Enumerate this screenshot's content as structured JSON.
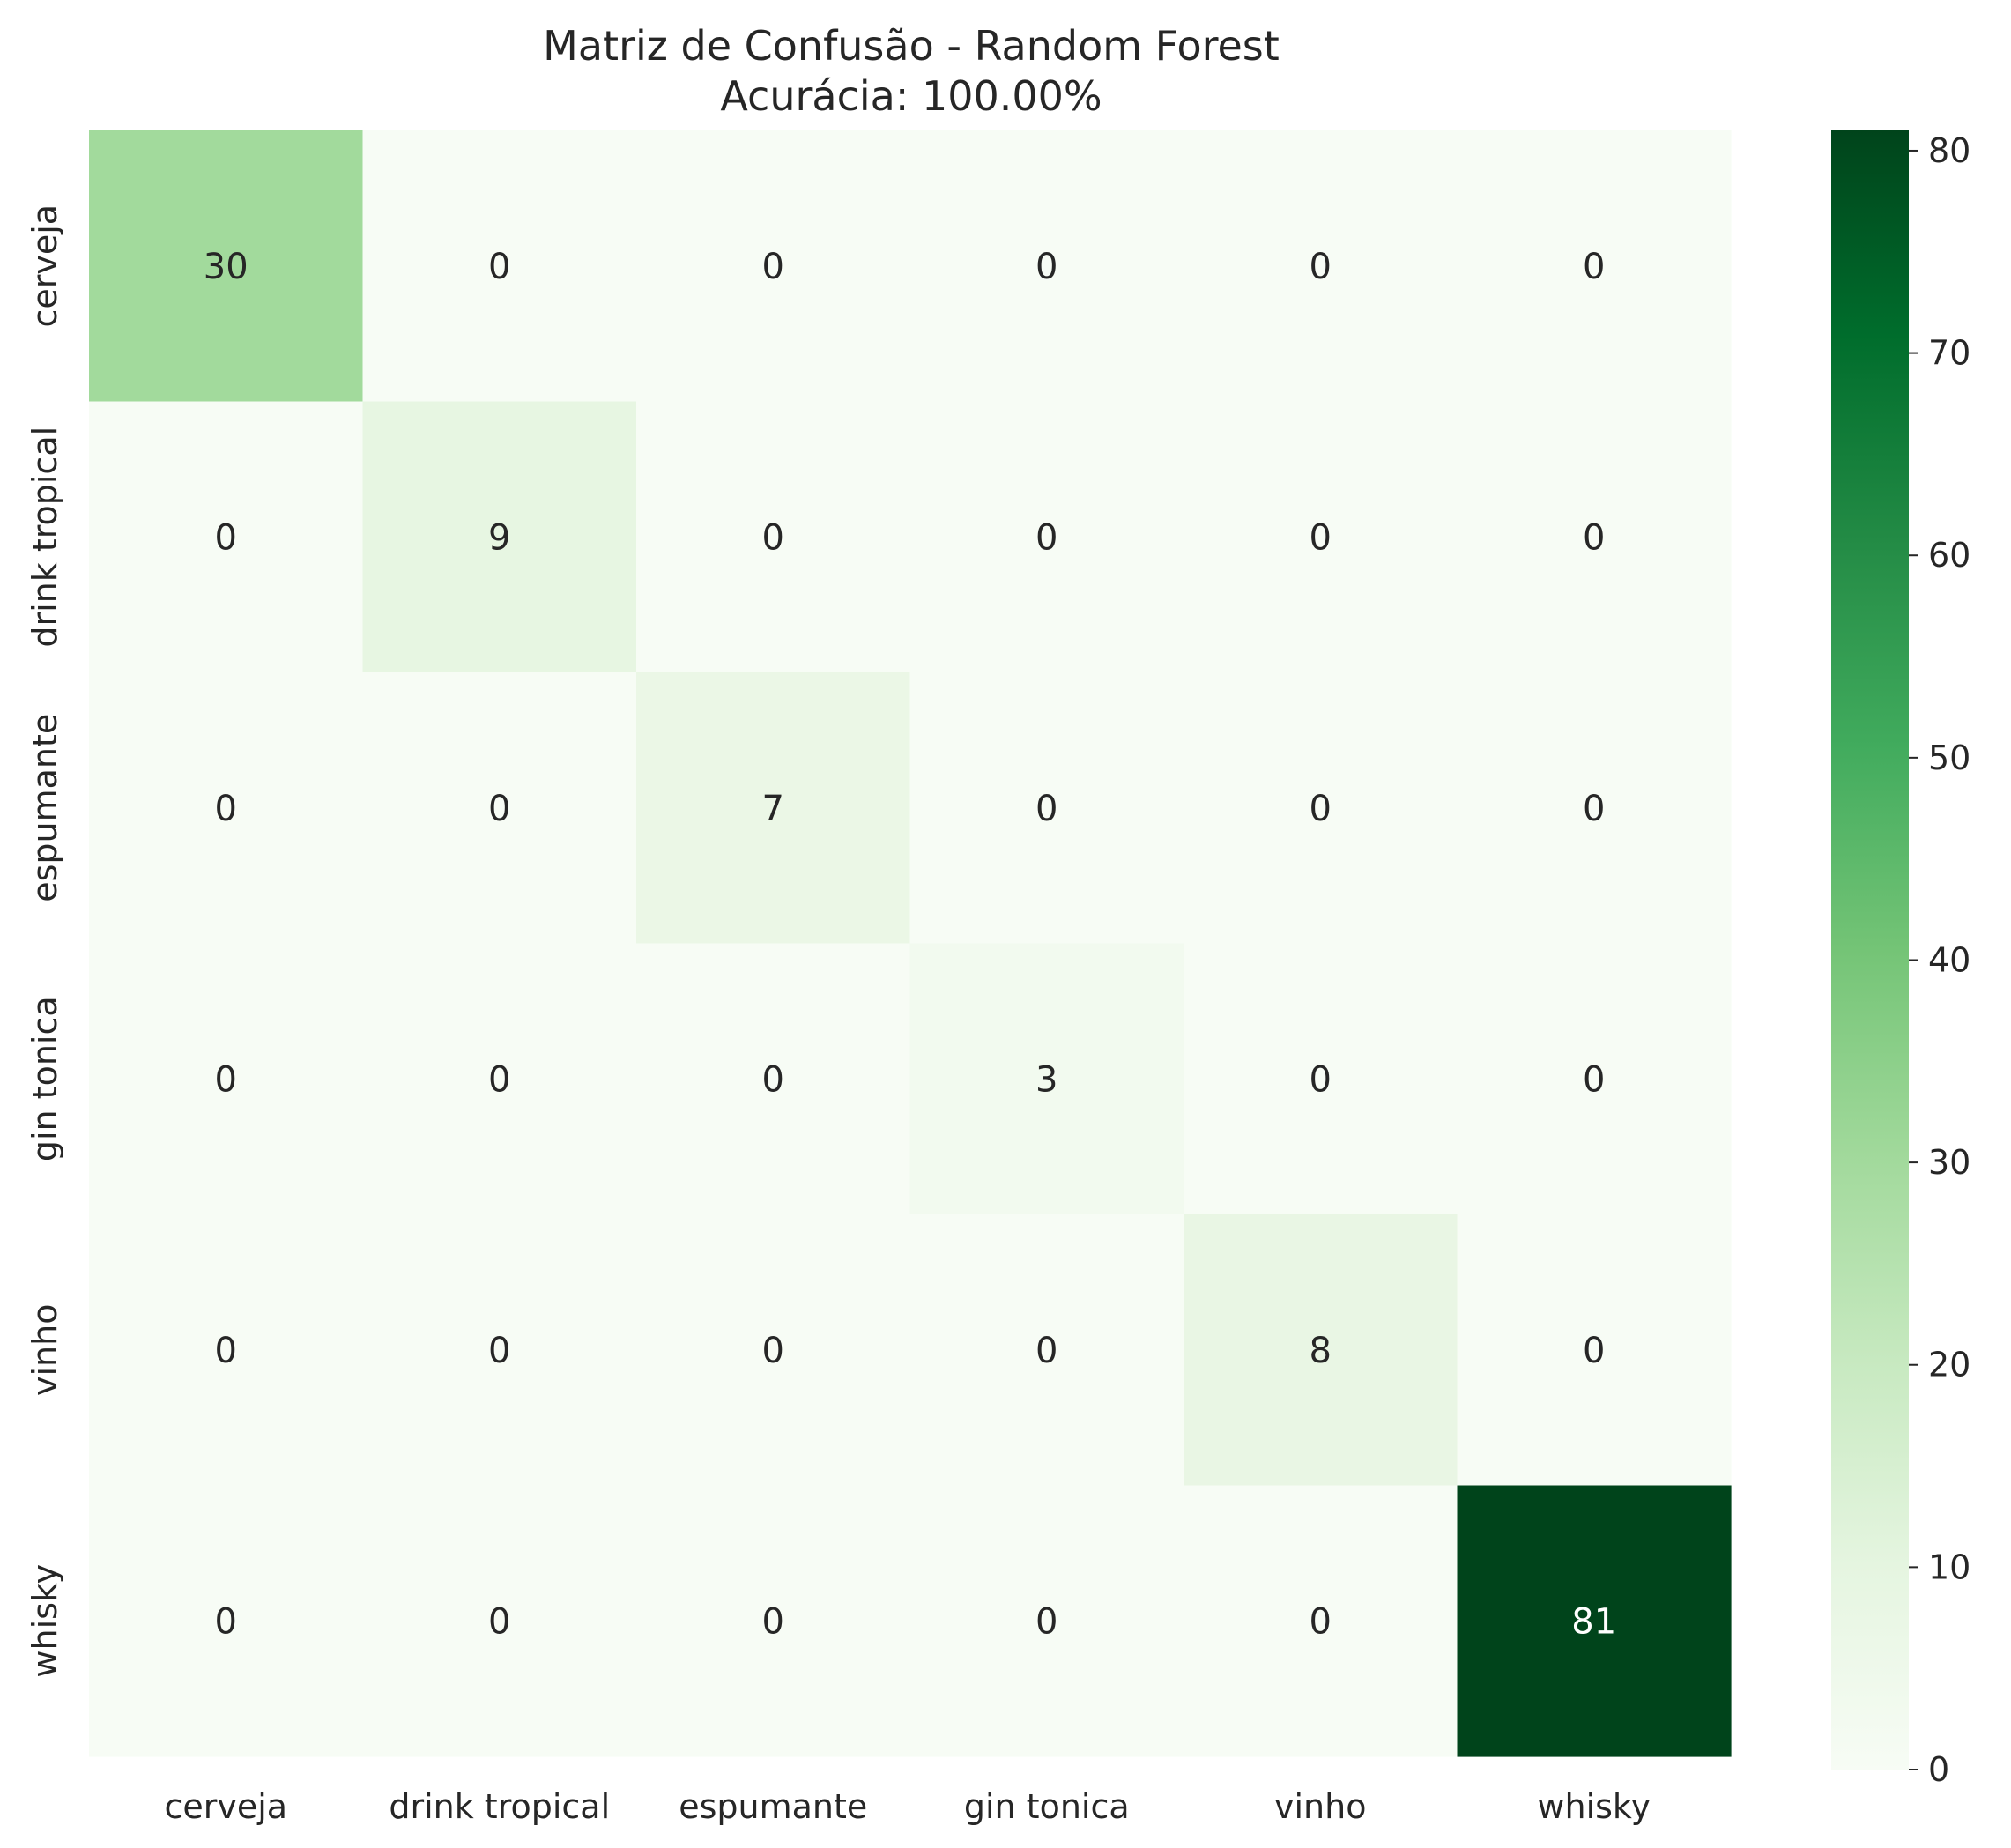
{
  "chart_data": {
    "type": "heatmap",
    "title": "Matriz de Confusão - Random Forest",
    "subtitle": "Acurácia: 100.00%",
    "xlabel": "",
    "ylabel": "",
    "x_categories": [
      "cerveja",
      "drink tropical",
      "espumante",
      "gin tonica",
      "vinho",
      "whisky"
    ],
    "y_categories": [
      "cerveja",
      "drink tropical",
      "espumante",
      "gin tonica",
      "vinho",
      "whisky"
    ],
    "values": [
      [
        30,
        0,
        0,
        0,
        0,
        0
      ],
      [
        0,
        9,
        0,
        0,
        0,
        0
      ],
      [
        0,
        0,
        7,
        0,
        0,
        0
      ],
      [
        0,
        0,
        0,
        3,
        0,
        0
      ],
      [
        0,
        0,
        0,
        0,
        8,
        0
      ],
      [
        0,
        0,
        0,
        0,
        0,
        81
      ]
    ],
    "annotations": true,
    "colormap": "Greens",
    "colormap_stops": [
      "#f7fcf5",
      "#e5f5e0",
      "#c7e9c0",
      "#a1d99b",
      "#74c476",
      "#41ab5d",
      "#238b45",
      "#006d2c",
      "#00441b"
    ],
    "colorbar": {
      "range": [
        0,
        81
      ],
      "ticks": [
        0,
        10,
        20,
        30,
        40,
        50,
        60,
        70,
        80
      ]
    },
    "text_color_dark": "#262626",
    "text_color_light": "#ffffff"
  }
}
